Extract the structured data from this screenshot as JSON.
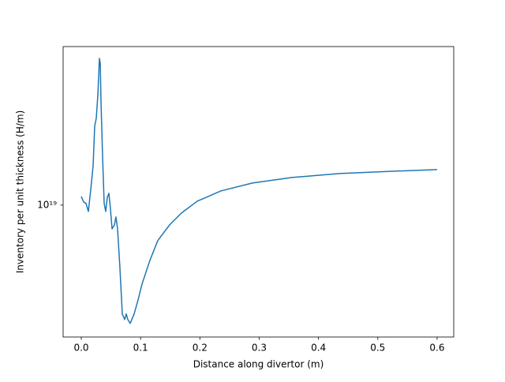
{
  "chart_data": {
    "type": "line",
    "xlabel": "Distance along divertor (m)",
    "ylabel": "Inventory per unit thickness (H/m)",
    "yscale": "log",
    "xlim": [
      -0.0306,
      0.628
    ],
    "ylim": [
      3.82e+18,
      3.18e+19
    ],
    "xticks": [
      {
        "value": 0,
        "label": "0.0"
      },
      0.1,
      0.2,
      0.3,
      0.4,
      0.5,
      0.6
    ],
    "yticks": [
      {
        "value": 1e+19,
        "label": "10¹⁹"
      }
    ],
    "series": [
      {
        "color": "#1f77b4",
        "x": [
          0,
          0.004,
          0.008,
          0.012,
          0.016,
          0.02,
          0.0226,
          0.0253,
          0.028,
          0.0306,
          0.032,
          0.0333,
          0.036,
          0.0386,
          0.0412,
          0.0439,
          0.0466,
          0.0492,
          0.0519,
          0.0559,
          0.0585,
          0.0612,
          0.0652,
          0.0692,
          0.0732,
          0.0758,
          0.0785,
          0.0825,
          0.0891,
          0.0958,
          0.1024,
          0.1157,
          0.129,
          0.149,
          0.169,
          0.1955,
          0.2354,
          0.2886,
          0.3551,
          0.4349,
          0.528,
          0.6
        ],
        "values": [
          1.065e+19,
          1.023e+19,
          1.012e+19,
          9.55e+18,
          1.122e+19,
          1.334e+19,
          1.778e+19,
          1.884e+19,
          2.239e+19,
          2.917e+19,
          2.818e+19,
          2.113e+19,
          1.413e+19,
          1.012e+19,
          9.55e+18,
          1.059e+19,
          1.09e+19,
          9.72e+18,
          8.41e+18,
          8.66e+18,
          9.17e+18,
          8.41e+18,
          6.31e+18,
          4.52e+18,
          4.34e+18,
          4.52e+18,
          4.34e+18,
          4.22e+18,
          4.52e+18,
          5.01e+18,
          5.62e+18,
          6.68e+18,
          7.72e+18,
          8.66e+18,
          9.44e+18,
          1.029e+19,
          1.109e+19,
          1.175e+19,
          1.223e+19,
          1.259e+19,
          1.281e+19,
          1.296e+19
        ]
      }
    ]
  }
}
